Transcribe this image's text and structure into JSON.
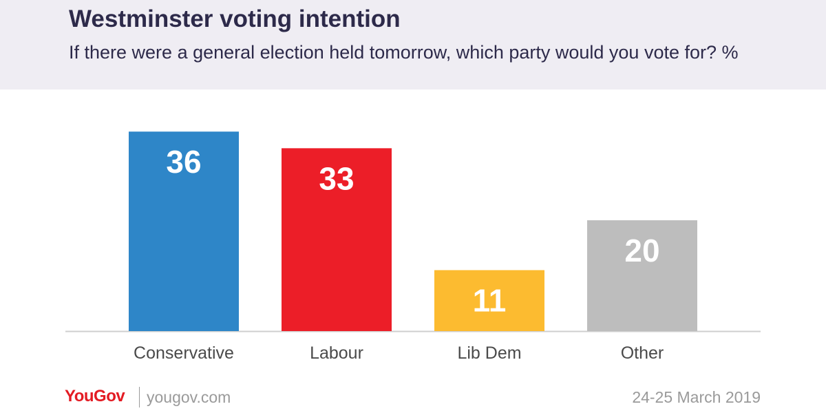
{
  "header": {
    "title": "Westminster voting intention",
    "subtitle": "If there were a general election held tomorrow, which party would you vote for? %"
  },
  "chart_data": {
    "type": "bar",
    "categories": [
      "Conservative",
      "Labour",
      "Lib Dem",
      "Other"
    ],
    "values": [
      36,
      33,
      11,
      20
    ],
    "colors": [
      "#2e86c8",
      "#ec1e28",
      "#fcbb30",
      "#bdbdbd"
    ],
    "value_label_color": "#ffffff",
    "axis_line_color": "#cfcfcf",
    "category_label_color": "#4a4a4a",
    "grid": false
  },
  "footer": {
    "logo": "YouGov",
    "url": "yougov.com",
    "date": "24-25 March 2019"
  }
}
